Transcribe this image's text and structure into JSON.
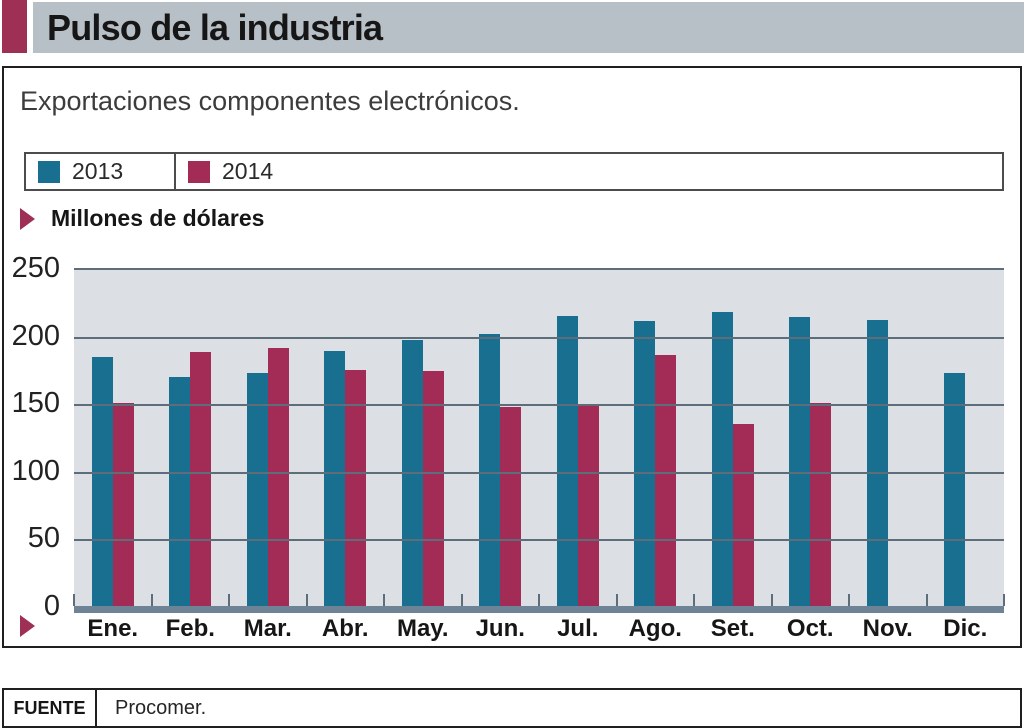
{
  "header": {
    "title": "Pulso de la industria"
  },
  "card": {
    "subtitle": "Exportaciones componentes electrónicos.",
    "unit_label": "Millones de dólares"
  },
  "chart_data": {
    "type": "bar",
    "title": "Exportaciones componentes electrónicos.",
    "ylabel": "Millones de dólares",
    "xlabel": "",
    "categories": [
      "Ene.",
      "Feb.",
      "Mar.",
      "Abr.",
      "May.",
      "Jun.",
      "Jul.",
      "Ago.",
      "Set.",
      "Oct.",
      "Nov.",
      "Dic."
    ],
    "series": [
      {
        "name": "2013",
        "color": "#186f90",
        "values": [
          186,
          171,
          174,
          190,
          198,
          203,
          216,
          212,
          219,
          215,
          213,
          174
        ]
      },
      {
        "name": "2014",
        "color": "#a22c55",
        "values": [
          152,
          189,
          192,
          176,
          175,
          149,
          151,
          187,
          136,
          152,
          null,
          null
        ]
      }
    ],
    "ylim": [
      0,
      250
    ],
    "yticks": [
      250,
      200,
      150,
      100,
      50,
      0
    ],
    "grid": true,
    "legend_position": "top"
  },
  "footer": {
    "source_label": "FUENTE",
    "source_value": "Procomer."
  },
  "colors": {
    "accent": "#9e2f55",
    "banner_bg": "#b7bfc7",
    "plot_bg": "#dcdfe3",
    "gridline": "#5d6d79",
    "baseline": "#6f8396",
    "series_2013": "#186f90",
    "series_2014": "#a22c55"
  }
}
